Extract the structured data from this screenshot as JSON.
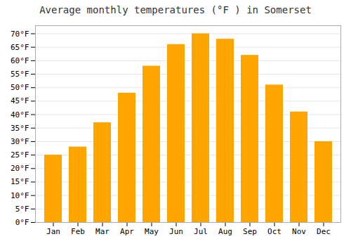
{
  "chart_data": {
    "type": "bar",
    "title": "Average monthly temperatures (°F ) in Somerset",
    "categories": [
      "Jan",
      "Feb",
      "Mar",
      "Apr",
      "May",
      "Jun",
      "Jul",
      "Aug",
      "Sep",
      "Oct",
      "Nov",
      "Dec"
    ],
    "values": [
      25,
      28,
      37,
      48,
      58,
      66,
      70,
      68,
      62,
      51,
      41,
      30
    ],
    "color": "#FFA500",
    "ylim": [
      0,
      73
    ],
    "yticks": [
      {
        "value": 0,
        "label": "0°F"
      },
      {
        "value": 5,
        "label": "5°F"
      },
      {
        "value": 10,
        "label": "10°F"
      },
      {
        "value": 15,
        "label": "15°F"
      },
      {
        "value": 20,
        "label": "20°F"
      },
      {
        "value": 25,
        "label": "25°F"
      },
      {
        "value": 30,
        "label": "30°F"
      },
      {
        "value": 35,
        "label": "35°F"
      },
      {
        "value": 40,
        "label": "40°F"
      },
      {
        "value": 45,
        "label": "45°F"
      },
      {
        "value": 50,
        "label": "50°F"
      },
      {
        "value": 55,
        "label": "55°F"
      },
      {
        "value": 60,
        "label": "60°F"
      },
      {
        "value": 65,
        "label": "65°F"
      },
      {
        "value": 70,
        "label": "70°F"
      }
    ],
    "grid": true
  }
}
